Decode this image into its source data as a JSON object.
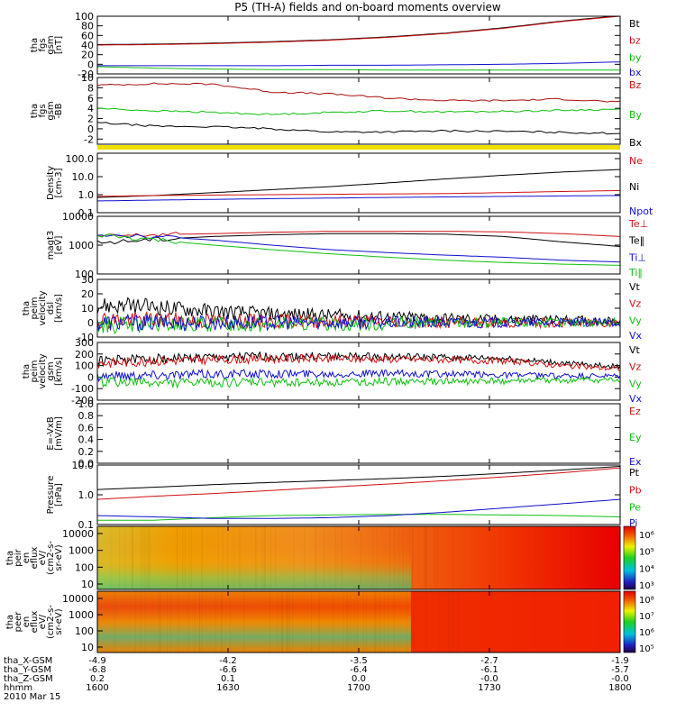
{
  "title": "P5 (TH-A) fields and on-board moments overview",
  "chart_data": {
    "type": "line",
    "title": "P5 (TH-A) fields and on-board moments overview",
    "x": {
      "ticks": [
        "1600",
        "1630",
        "1700",
        "1730",
        "1800"
      ],
      "range": [
        1600,
        1800
      ]
    },
    "panels": [
      {
        "id": "fgs",
        "ylabel": [
          "tha",
          "fgs",
          "gsm",
          "[nT]"
        ],
        "scale": "linear",
        "ylim": [
          -20,
          100
        ],
        "yticks": [
          "100",
          "80",
          "60",
          "40",
          "20",
          "0",
          "-20"
        ],
        "legend": [
          {
            "name": "Bt",
            "color": "#000000"
          },
          {
            "name": "bz",
            "color": "#d01010"
          },
          {
            "name": "by",
            "color": "#10c010"
          },
          {
            "name": "bx",
            "color": "#1010d0"
          }
        ],
        "series": [
          {
            "name": "Bt",
            "color": "#000000",
            "y": [
              41,
              42,
              44,
              47,
              51,
              57,
              65,
              76,
              90,
              101
            ]
          },
          {
            "name": "bz",
            "color": "#d01010",
            "y": [
              40,
              41,
              43,
              46,
              50,
              56,
              64,
              75,
              89,
              100
            ]
          },
          {
            "name": "by",
            "color": "#10c010",
            "y": [
              -5,
              -8,
              -10,
              -11,
              -11,
              -12,
              -12,
              -12,
              -12,
              -12
            ]
          },
          {
            "name": "bx",
            "color": "#1010d0",
            "y": [
              -3,
              -3,
              -3,
              -3,
              -2,
              -2,
              -1,
              0,
              2,
              5
            ]
          }
        ]
      },
      {
        "id": "fgsbb",
        "ylabel": [
          "tha",
          "fgs",
          "gsm",
          "-BB"
        ],
        "scale": "linear",
        "ylim": [
          -3,
          10
        ],
        "yticks": [
          "10",
          "8",
          "6",
          "4",
          "2",
          "0",
          "-2"
        ],
        "legend": [
          {
            "name": "Bz",
            "color": "#d01010"
          },
          {
            "name": "By",
            "color": "#10c010"
          },
          {
            "name": "Bx",
            "color": "#000000"
          }
        ],
        "series": [
          {
            "name": "Bz",
            "color": "#aa1010",
            "y": [
              8.5,
              8.8,
              8.7,
              7.2,
              6.8,
              6.0,
              5.5,
              5.5,
              5.8,
              5.2
            ]
          },
          {
            "name": "By",
            "color": "#10c010",
            "y": [
              4.0,
              3.5,
              3.2,
              2.8,
              3.2,
              3.5,
              3.3,
              3.4,
              3.6,
              3.8
            ]
          },
          {
            "name": "Bx",
            "color": "#000000",
            "y": [
              1.2,
              0.5,
              0.4,
              0.0,
              -0.6,
              -0.6,
              -0.4,
              -0.5,
              -0.7,
              -0.9
            ]
          }
        ]
      },
      {
        "id": "density",
        "ylabel": [
          "Density",
          "[cm-3]"
        ],
        "scale": "log",
        "ylim": [
          0.1,
          200
        ],
        "yticks": [
          "100.0",
          "10.0",
          "1.0",
          "0.1"
        ],
        "legend": [
          {
            "name": "Ne",
            "color": "#d01010"
          },
          {
            "name": "Ni",
            "color": "#000000"
          },
          {
            "name": "Npot",
            "color": "#1010d0"
          }
        ],
        "series": [
          {
            "name": "Ni",
            "color": "#000000",
            "y": [
              0.7,
              0.9,
              1.3,
              1.9,
              2.8,
              4.5,
              7.5,
              12,
              18,
              25
            ]
          },
          {
            "name": "Ne",
            "color": "#d01010",
            "y": [
              0.8,
              0.9,
              0.95,
              1.0,
              1.05,
              1.1,
              1.15,
              1.3,
              1.5,
              1.7
            ]
          },
          {
            "name": "Npot",
            "color": "#1010d0",
            "y": [
              0.45,
              0.5,
              0.55,
              0.6,
              0.65,
              0.7,
              0.75,
              0.8,
              0.85,
              0.9
            ]
          }
        ]
      },
      {
        "id": "mag",
        "ylabel": [
          "magt3",
          "[eV]"
        ],
        "scale": "log",
        "ylim": [
          100,
          10000
        ],
        "yticks": [
          "10000",
          "1000",
          "100"
        ],
        "legend": [
          {
            "name": "Te⊥",
            "color": "#d01010"
          },
          {
            "name": "Te‖",
            "color": "#000000"
          },
          {
            "name": "Ti⊥",
            "color": "#1010d0"
          },
          {
            "name": "Ti‖",
            "color": "#10c010"
          }
        ],
        "series": [
          {
            "name": "Te⊥",
            "color": "#d01010",
            "y": [
              2000,
              2300,
              2500,
              2800,
              3000,
              3000,
              3000,
              2900,
              2500,
              2000
            ]
          },
          {
            "name": "Te‖",
            "color": "#000000",
            "y": [
              1200,
              1600,
              2000,
              2300,
              2500,
              2500,
              2400,
              2000,
              1300,
              900
            ]
          },
          {
            "name": "Ti⊥",
            "color": "#1010d0",
            "y": [
              2500,
              2000,
              1500,
              1000,
              700,
              550,
              450,
              380,
              300,
              260
            ]
          },
          {
            "name": "Ti‖",
            "color": "#10c010",
            "y": [
              2200,
              1500,
              1000,
              700,
              500,
              380,
              300,
              250,
              220,
              200
            ]
          }
        ]
      },
      {
        "id": "vdsl",
        "ylabel": [
          "tha",
          "peim",
          "velocity",
          "dsl",
          "[km/s]"
        ],
        "scale": "linear",
        "ylim": [
          -10,
          30
        ],
        "yticks": [
          "30",
          "20",
          "10",
          "0",
          "-10"
        ],
        "legend": [
          {
            "name": "Vt",
            "color": "#000000"
          },
          {
            "name": "Vz",
            "color": "#d01010"
          },
          {
            "name": "Vy",
            "color": "#10c010"
          },
          {
            "name": "Vx",
            "color": "#1010d0"
          }
        ],
        "series": [
          {
            "name": "Vt",
            "color": "#000000",
            "y": [
              12,
              11,
              8,
              6,
              5,
              4,
              3,
              2,
              2,
              1
            ]
          },
          {
            "name": "Vz",
            "color": "#d01010",
            "y": [
              2,
              2,
              1,
              1,
              1,
              1,
              0,
              0,
              0,
              0
            ]
          },
          {
            "name": "Vy",
            "color": "#10c010",
            "y": [
              -2,
              -2,
              -1,
              -1,
              -1,
              -1,
              0,
              0,
              0,
              0
            ]
          },
          {
            "name": "Vx",
            "color": "#1010d0",
            "y": [
              0,
              0,
              0,
              0,
              0,
              0,
              0,
              0,
              0,
              0
            ]
          }
        ]
      },
      {
        "id": "vgsm",
        "ylabel": [
          "tha",
          "peim",
          "velocity",
          "gsm",
          "[km/s]"
        ],
        "scale": "linear",
        "ylim": [
          -200,
          300
        ],
        "yticks": [
          "300",
          "200",
          "100",
          "0",
          "-100",
          "-200"
        ],
        "legend": [
          {
            "name": "Vt",
            "color": "#000000"
          },
          {
            "name": "Vz",
            "color": "#d01010"
          },
          {
            "name": "Vy",
            "color": "#10c010"
          },
          {
            "name": "Vx",
            "color": "#1010d0"
          }
        ],
        "series": [
          {
            "name": "Vt",
            "color": "#000000",
            "y": [
              140,
              160,
              170,
              180,
              180,
              175,
              170,
              160,
              120,
              90
            ]
          },
          {
            "name": "Vz",
            "color": "#d01010",
            "y": [
              120,
              140,
              150,
              160,
              160,
              155,
              150,
              140,
              100,
              70
            ]
          },
          {
            "name": "Vx",
            "color": "#1010d0",
            "y": [
              10,
              20,
              25,
              30,
              30,
              30,
              25,
              20,
              10,
              5
            ]
          },
          {
            "name": "Vy",
            "color": "#10c010",
            "y": [
              -40,
              -50,
              -50,
              -45,
              -45,
              -40,
              -40,
              -35,
              -30,
              -25
            ]
          }
        ]
      },
      {
        "id": "exb",
        "ylabel": [
          "E=-VxB",
          "[mV/m]"
        ],
        "scale": "linear",
        "ylim": [
          0,
          1
        ],
        "yticks": [
          "1.0",
          "0.8",
          "0.6",
          "0.4",
          "0.2",
          "0.0"
        ],
        "legend": [
          {
            "name": "Ez",
            "color": "#d01010"
          },
          {
            "name": "Ey",
            "color": "#10c010"
          },
          {
            "name": "Ex",
            "color": "#1010d0"
          }
        ],
        "series": []
      },
      {
        "id": "pressure",
        "ylabel": [
          "Pressure",
          "[nPa]"
        ],
        "scale": "log",
        "ylim": [
          0.1,
          10
        ],
        "yticks": [
          "10.0",
          "1.0",
          "0.1"
        ],
        "legend": [
          {
            "name": "Pt",
            "color": "#000000"
          },
          {
            "name": "Pb",
            "color": "#d01010"
          },
          {
            "name": "Pe",
            "color": "#10c010"
          },
          {
            "name": "Pi",
            "color": "#1010d0"
          }
        ],
        "series": [
          {
            "name": "Pt",
            "color": "#000000",
            "y": [
              1.5,
              1.8,
              2.2,
              2.6,
              3.0,
              3.5,
              4.2,
              5.3,
              6.8,
              9.0
            ]
          },
          {
            "name": "Pb",
            "color": "#d01010",
            "y": [
              0.7,
              0.9,
              1.1,
              1.4,
              1.8,
              2.3,
              3.0,
              4.0,
              5.5,
              8.0
            ]
          },
          {
            "name": "Pe",
            "color": "#10c010",
            "y": [
              0.14,
              0.14,
              0.17,
              0.2,
              0.21,
              0.22,
              0.22,
              0.21,
              0.2,
              0.18
            ]
          },
          {
            "name": "Pi",
            "color": "#1010d0",
            "y": [
              0.2,
              0.18,
              0.16,
              0.16,
              0.17,
              0.2,
              0.26,
              0.36,
              0.5,
              0.7
            ]
          }
        ]
      }
    ],
    "spectrograms": [
      {
        "id": "peir",
        "ylabel": [
          "tha",
          "peir",
          "en",
          "eflux",
          "eV/",
          "(cm2-s-",
          "sr-eV)"
        ],
        "yticks": [
          "10000",
          "1000",
          "100",
          "10"
        ],
        "cbar": [
          "10⁶",
          "10⁵",
          "10⁴",
          "10³"
        ]
      },
      {
        "id": "peer",
        "ylabel": [
          "tha",
          "peer",
          "en",
          "eflux",
          "eV/",
          "(cm2-s-",
          "sr-eV)"
        ],
        "yticks": [
          "10000",
          "1000",
          "100",
          "10"
        ],
        "cbar": [
          "10⁸",
          "10⁷",
          "10⁶",
          "10⁵"
        ]
      }
    ],
    "ephemeris": [
      {
        "label": "tha_X-GSM",
        "values": [
          "-4.9",
          "-4.2",
          "-3.5",
          "-2.7",
          "-1.9"
        ]
      },
      {
        "label": "tha_Y-GSM",
        "values": [
          "-6.8",
          "-6.6",
          "-6.4",
          "-6.1",
          "-5.7"
        ]
      },
      {
        "label": "tha_Z-GSM",
        "values": [
          "0.2",
          "0.1",
          "0.0",
          "-0.0",
          "-0.0"
        ]
      },
      {
        "label": "hhmm",
        "values": [
          "1600",
          "1630",
          "1700",
          "1730",
          "1800"
        ]
      }
    ],
    "date": "2010 Mar 15"
  }
}
